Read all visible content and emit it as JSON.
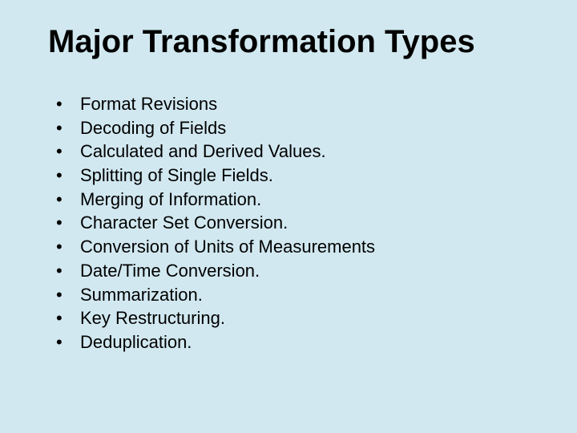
{
  "slide": {
    "background_color": "#d1e8f0",
    "text_color": "#000000",
    "title": "Major Transformation Types",
    "title_fontsize": 40,
    "title_fontweight": "bold",
    "bullet_fontsize": 22,
    "bullet_char": "•",
    "bullets": [
      "Format Revisions",
      "Decoding of Fields",
      "Calculated and Derived Values.",
      "Splitting of Single Fields.",
      "Merging of Information.",
      "Character Set Conversion.",
      "Conversion of Units of Measurements",
      "Date/Time Conversion.",
      "Summarization.",
      "Key Restructuring.",
      "Deduplication."
    ]
  }
}
